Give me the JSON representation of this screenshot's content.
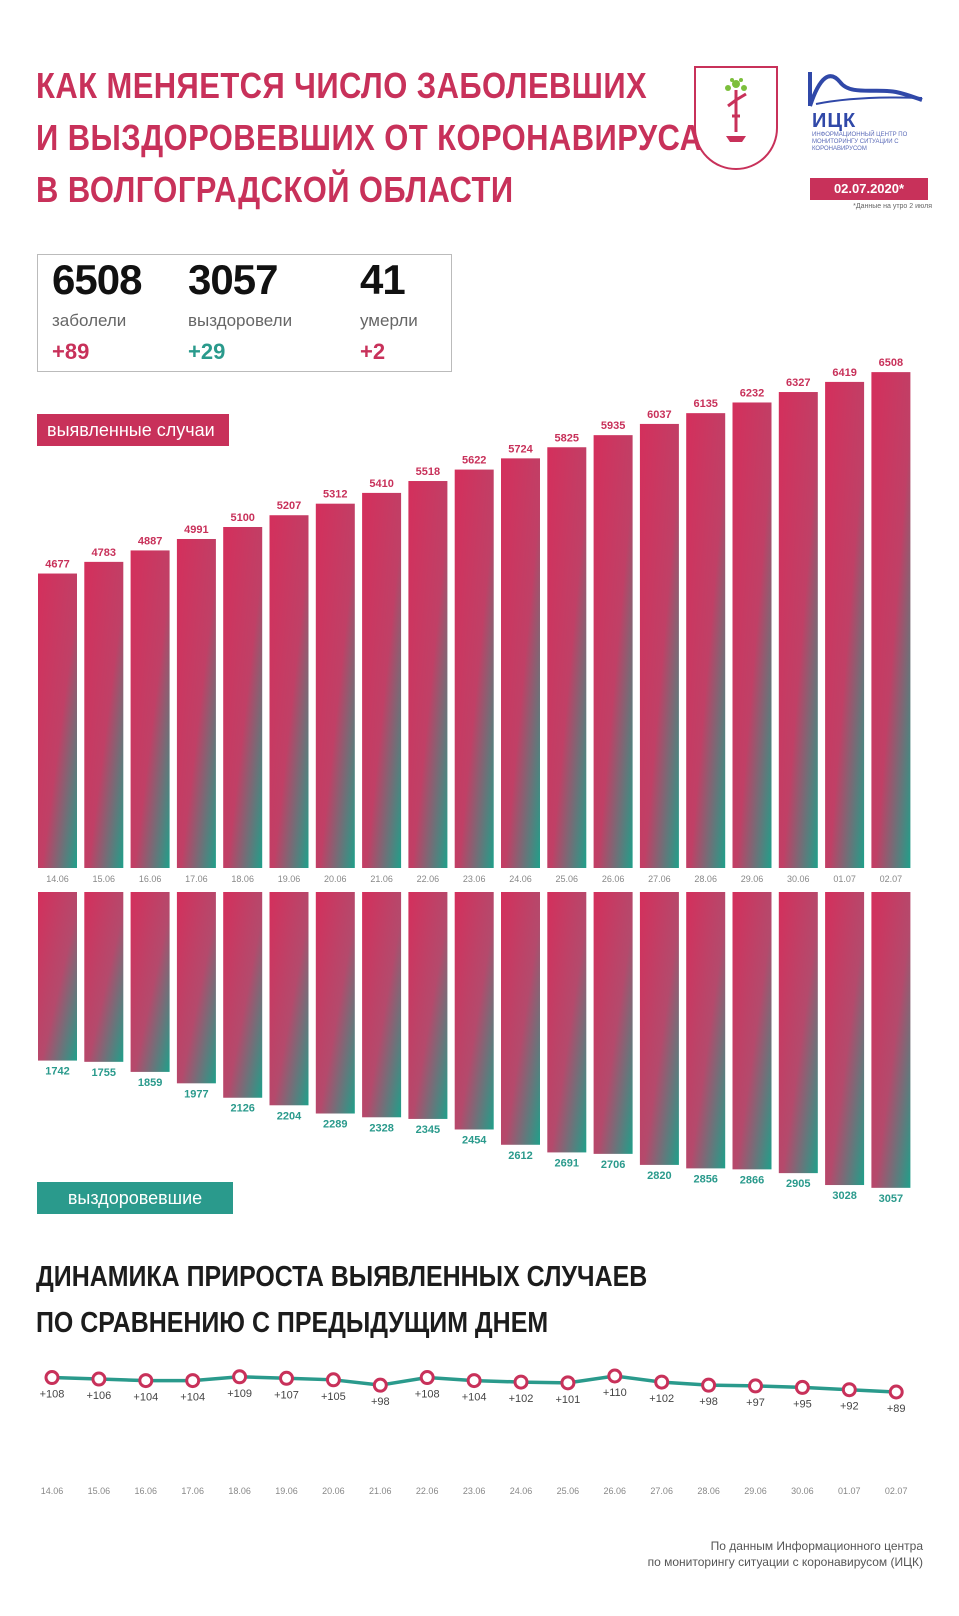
{
  "header": {
    "title_lines": [
      "КАК МЕНЯЕТСЯ ЧИСЛО ЗАБОЛЕВШИХ",
      "И ВЫЗДОРОВЕВШИХ ОТ КОРОНАВИРУСА",
      "В ВОЛГОГРАДСКОЙ ОБЛАСТИ"
    ],
    "logo_letters": "ИЦК",
    "logo_description": "ИНФОРМАЦИОННЫЙ ЦЕНТР ПО МОНИТОРИНГУ СИТУАЦИИ С КОРОНАВИРУСОМ",
    "date": "02.07.2020*",
    "date_note": "*Данные на утро 2 июля"
  },
  "summary": {
    "sick": {
      "value": "6508",
      "label": "заболели",
      "delta": "+89"
    },
    "recovered": {
      "value": "3057",
      "label": "выздоровели",
      "delta": "+29"
    },
    "died": {
      "value": "41",
      "label": "умерли",
      "delta": "+2"
    }
  },
  "tags": {
    "cases": "выявленные случаи",
    "recovered": "выздоровевшие"
  },
  "growth_title_lines": [
    "ДИНАМИКА ПРИРОСТА ВЫЯВЛЕННЫХ СЛУЧАЕВ",
    "ПО СРАВНЕНИЮ С ПРЕДЫДУЩИМ ДНЕМ"
  ],
  "source_lines": [
    "По данным Информационного центра",
    "по мониторингу ситуации с коронавирусом (ИЦК)"
  ],
  "colors": {
    "pink": "#c8315a",
    "teal": "#2a9a8c",
    "line": "#2a9a8c",
    "marker": "#c8315a"
  },
  "chart_data": [
    {
      "type": "bar",
      "categories": [
        "14.06",
        "15.06",
        "16.06",
        "17.06",
        "18.06",
        "19.06",
        "20.06",
        "21.06",
        "22.06",
        "23.06",
        "24.06",
        "25.06",
        "26.06",
        "27.06",
        "28.06",
        "29.06",
        "30.06",
        "01.07",
        "02.07"
      ],
      "series": [
        {
          "name": "выявленные случаи",
          "values": [
            4677,
            4783,
            4887,
            4991,
            5100,
            5207,
            5312,
            5410,
            5518,
            5622,
            5724,
            5825,
            5935,
            6037,
            6135,
            6232,
            6327,
            6419,
            6508
          ]
        }
      ],
      "ylim": [
        2000,
        6600
      ]
    },
    {
      "type": "bar",
      "categories": [
        "14.06",
        "15.06",
        "16.06",
        "17.06",
        "18.06",
        "19.06",
        "20.06",
        "21.06",
        "22.06",
        "23.06",
        "24.06",
        "25.06",
        "26.06",
        "27.06",
        "28.06",
        "29.06",
        "30.06",
        "01.07",
        "02.07"
      ],
      "series": [
        {
          "name": "выздоровевшие",
          "values": [
            1742,
            1755,
            1859,
            1977,
            2126,
            2204,
            2289,
            2328,
            2345,
            2454,
            2612,
            2691,
            2706,
            2820,
            2856,
            2866,
            2905,
            3028,
            3057
          ]
        }
      ],
      "ylim": [
        0,
        3100
      ]
    },
    {
      "type": "line",
      "x": [
        "14.06",
        "15.06",
        "16.06",
        "17.06",
        "18.06",
        "19.06",
        "20.06",
        "21.06",
        "22.06",
        "23.06",
        "24.06",
        "25.06",
        "26.06",
        "27.06",
        "28.06",
        "29.06",
        "30.06",
        "01.07",
        "02.07"
      ],
      "series": [
        {
          "values": [
            108,
            106,
            104,
            104,
            109,
            107,
            105,
            98,
            108,
            104,
            102,
            101,
            110,
            102,
            98,
            97,
            95,
            92,
            89
          ]
        }
      ],
      "labels": [
        "+108",
        "+106",
        "+104",
        "+104",
        "+109",
        "+107",
        "+105",
        "+98",
        "+108",
        "+104",
        "+102",
        "+101",
        "+110",
        "+102",
        "+98",
        "+97",
        "+95",
        "+92",
        "+89"
      ]
    }
  ]
}
